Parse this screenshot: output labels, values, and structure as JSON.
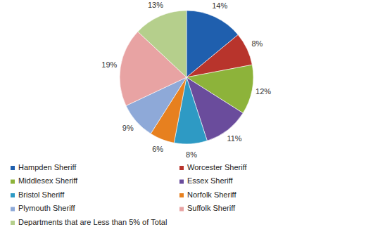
{
  "chart_data": {
    "type": "pie",
    "categories": [
      "Hampden Sheriff",
      "Worcester Sheriff",
      "Middlesex Sheriff",
      "Essex Sheriff",
      "Bristol Sheriff",
      "Norfolk Sheriff",
      "Plymouth Sheriff",
      "Suffolk Sheriff",
      "Departments that are Less than 5% of Total"
    ],
    "values": [
      14,
      8,
      12,
      11,
      8,
      6,
      9,
      19,
      13
    ],
    "value_labels": [
      "14%",
      "8%",
      "12%",
      "11%",
      "8%",
      "6%",
      "9%",
      "19%",
      "13%"
    ],
    "colors": [
      "#1f5fae",
      "#b8342c",
      "#8db33a",
      "#6a4c9c",
      "#2e9ac4",
      "#e7801f",
      "#8ea9d8",
      "#e8a3a3",
      "#b5cf8c"
    ],
    "data_labels": true,
    "legend": "bottom"
  }
}
